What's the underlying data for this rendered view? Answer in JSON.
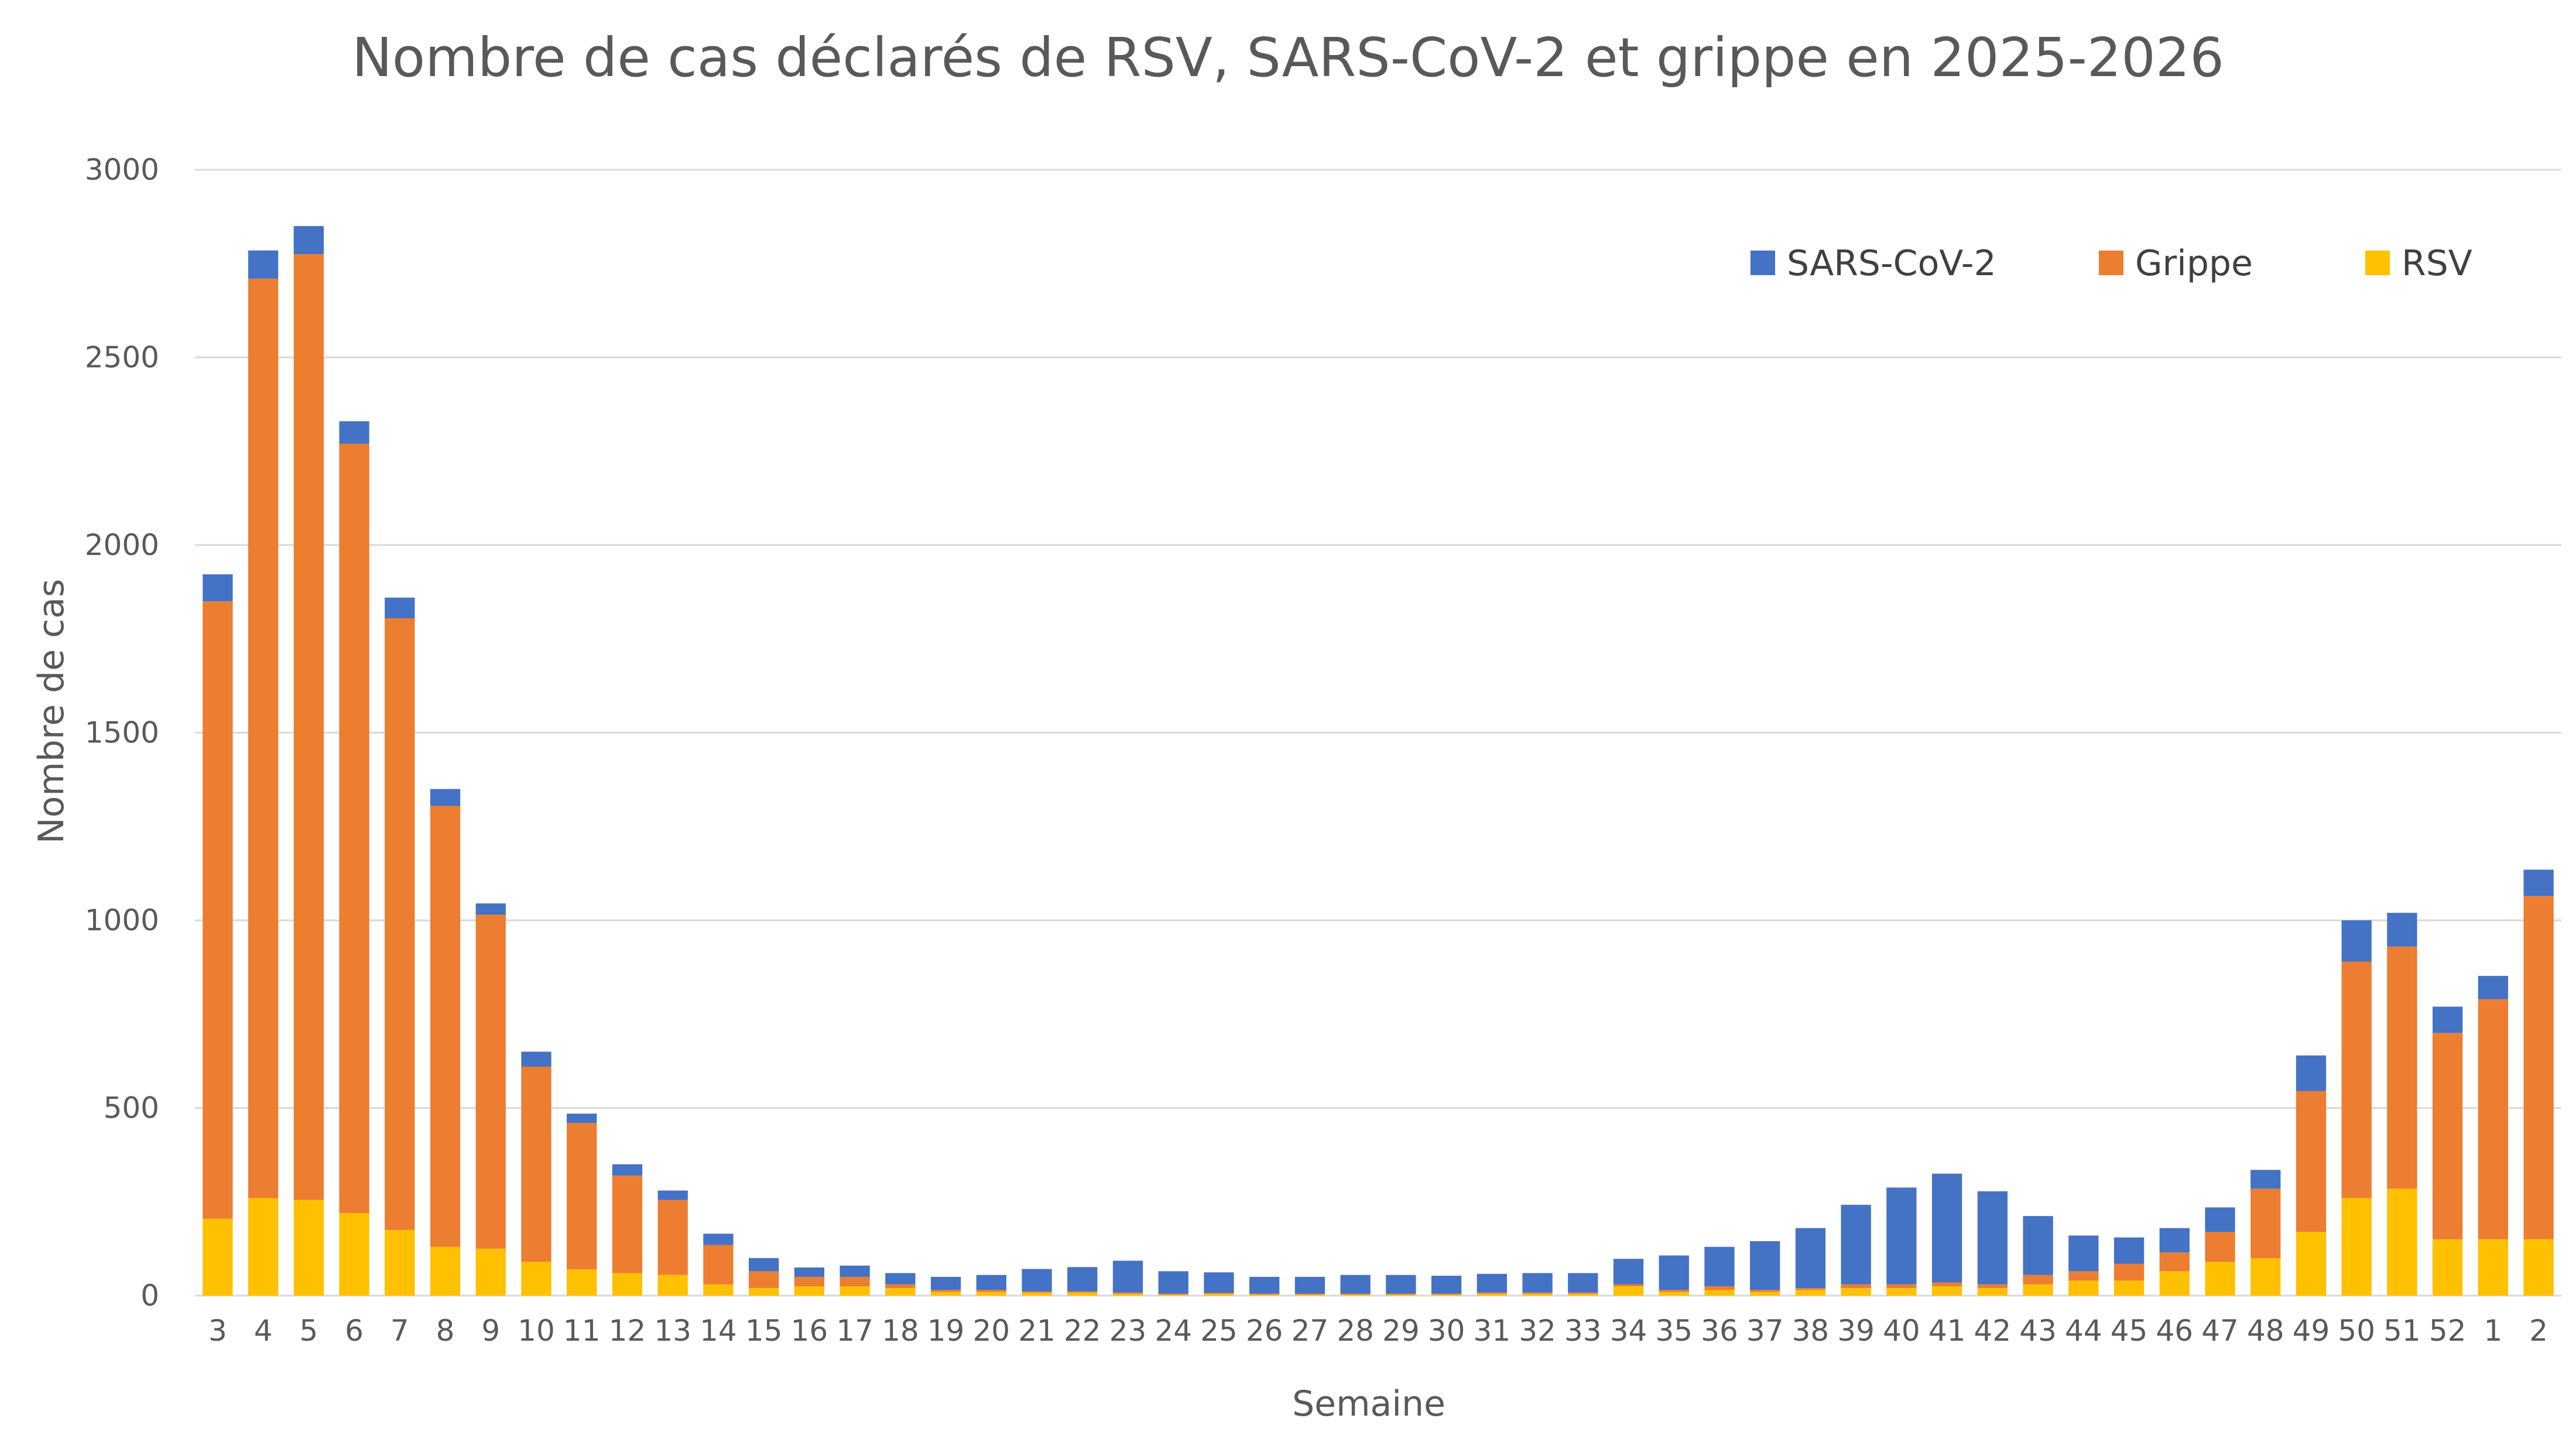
{
  "chart_data": {
    "type": "bar",
    "stacked": true,
    "title": "Nombre de cas déclarés de RSV, SARS-CoV-2 et grippe en 2025-2026",
    "xlabel": "Semaine",
    "ylabel": "Nombre de cas",
    "ylim": [
      0,
      3000
    ],
    "yticks": [
      0,
      500,
      1000,
      1500,
      2000,
      2500,
      3000
    ],
    "grid": true,
    "legend_position": "top-right",
    "categories": [
      "3",
      "4",
      "5",
      "6",
      "7",
      "8",
      "9",
      "10",
      "11",
      "12",
      "13",
      "14",
      "15",
      "16",
      "17",
      "18",
      "19",
      "20",
      "21",
      "22",
      "23",
      "24",
      "25",
      "26",
      "27",
      "28",
      "29",
      "30",
      "31",
      "32",
      "33",
      "34",
      "35",
      "36",
      "37",
      "38",
      "39",
      "40",
      "41",
      "42",
      "43",
      "44",
      "45",
      "46",
      "47",
      "48",
      "49",
      "50",
      "51",
      "52",
      "1",
      "2"
    ],
    "series": [
      {
        "name": "RSV",
        "color": "#FFC000",
        "values": [
          205,
          260,
          255,
          220,
          175,
          130,
          125,
          90,
          70,
          60,
          55,
          30,
          20,
          25,
          25,
          20,
          10,
          10,
          8,
          8,
          5,
          3,
          5,
          3,
          3,
          3,
          3,
          3,
          5,
          5,
          5,
          25,
          10,
          15,
          10,
          15,
          20,
          20,
          25,
          20,
          30,
          40,
          40,
          65,
          90,
          100,
          170,
          260,
          285,
          150,
          150,
          150
        ]
      },
      {
        "name": "Grippe",
        "color": "#ED7D31",
        "values": [
          1645,
          2450,
          2520,
          2050,
          1630,
          1175,
          890,
          520,
          390,
          260,
          200,
          105,
          45,
          25,
          25,
          10,
          5,
          5,
          3,
          3,
          3,
          2,
          2,
          2,
          2,
          2,
          2,
          2,
          3,
          3,
          3,
          5,
          5,
          10,
          5,
          5,
          10,
          10,
          10,
          10,
          25,
          25,
          45,
          50,
          80,
          185,
          375,
          630,
          645,
          550,
          640,
          915
        ]
      },
      {
        "name": "SARS-CoV-2",
        "color": "#4472C4",
        "values": [
          72,
          75,
          75,
          60,
          55,
          45,
          30,
          40,
          25,
          30,
          25,
          30,
          35,
          25,
          30,
          30,
          35,
          40,
          60,
          65,
          85,
          60,
          55,
          45,
          45,
          50,
          50,
          48,
          50,
          52,
          52,
          68,
          92,
          105,
          130,
          160,
          212,
          258,
          290,
          248,
          157,
          95,
          70,
          65,
          65,
          50,
          95,
          110,
          90,
          70,
          62,
          70
        ]
      }
    ],
    "legend_order": [
      "SARS-CoV-2",
      "Grippe",
      "RSV"
    ]
  }
}
